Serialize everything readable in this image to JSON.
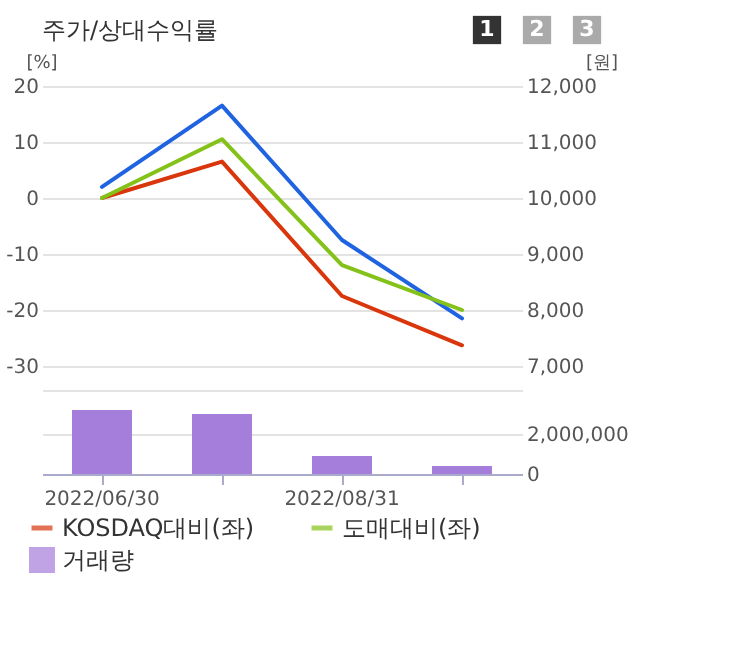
{
  "chart_data": [
    {
      "type": "line",
      "title": "주가/상대수익률",
      "annotations": [
        "1",
        "2",
        "3"
      ],
      "categories": [
        "2022/06/30",
        null,
        "2022/08/31",
        null
      ],
      "ylabel": "[%]",
      "y2label": "[원]",
      "ylim": [
        -30,
        20
      ],
      "yticks": [
        -30,
        -20,
        -10,
        0,
        10,
        20
      ],
      "y2lim": [
        7000,
        12000
      ],
      "y2ticks": [
        {
          "value": 7000,
          "label": "7,000"
        },
        {
          "value": 8000,
          "label": "8,000"
        },
        {
          "value": 9000,
          "label": "9,000"
        },
        {
          "value": 10000,
          "label": "10,000"
        },
        {
          "value": 11000,
          "label": "11,000"
        },
        {
          "value": 12000,
          "label": "12,000"
        }
      ],
      "grid": "y",
      "legend": "bottom",
      "tick_labels": "y",
      "series": [
        {
          "color": "#1f63e0",
          "axis": "y2",
          "values": [
            10200,
            11650,
            9250,
            7850
          ]
        },
        {
          "name": "KOSDAQ대비(좌)",
          "color": "#d9360b",
          "values": [
            0,
            6.5,
            -17.5,
            -26.3
          ]
        },
        {
          "name": "도매대비(좌)",
          "color": "#84c21a",
          "values": [
            0,
            10.5,
            -12,
            -20
          ]
        }
      ]
    },
    {
      "type": "bar",
      "categories": [
        "2022/06/30",
        null,
        "2022/08/31",
        null
      ],
      "ylim": [
        0,
        4200000
      ],
      "yticks": [
        0,
        {
          "value": 2000000,
          "label": "2,000,000"
        },
        {
          "value": 4200000,
          "label": null
        }
      ],
      "grid": "y",
      "legend": "bottom",
      "series": [
        {
          "name": "거래량",
          "color": "#a57ddb",
          "values": [
            3200000,
            3000000,
            900000,
            400000
          ]
        }
      ]
    }
  ]
}
